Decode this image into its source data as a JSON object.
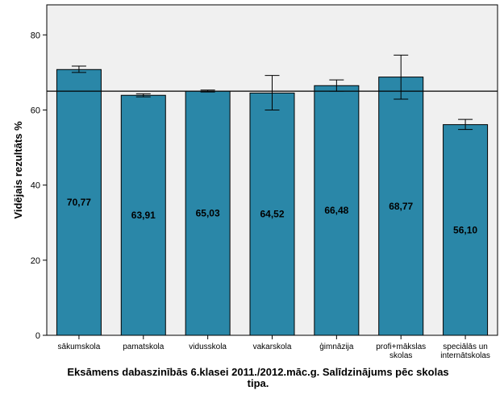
{
  "colors": {
    "bar": "#2a87a8",
    "plot_bg": "#f0f0f0",
    "reference_line": "#000000"
  },
  "chart_data": {
    "type": "bar",
    "categories": [
      [
        "sākumskola"
      ],
      [
        "pamatskola"
      ],
      [
        "vidusskola"
      ],
      [
        "vakarskola"
      ],
      [
        "ģimnāzija"
      ],
      [
        "profi+mākslas",
        "skolas"
      ],
      [
        "speciālās un",
        "internātskolas"
      ]
    ],
    "values": [
      70.77,
      63.91,
      65.03,
      64.52,
      66.48,
      68.77,
      56.1
    ],
    "value_labels": [
      "70,77",
      "63,91",
      "65,03",
      "64,52",
      "66,48",
      "68,77",
      "56,10"
    ],
    "error_bars": [
      [
        70.0,
        71.7
      ],
      [
        63.5,
        64.3
      ],
      [
        64.8,
        65.3
      ],
      [
        60.0,
        69.2
      ],
      [
        65.0,
        68.0
      ],
      [
        62.9,
        74.6
      ],
      [
        54.8,
        57.5
      ]
    ],
    "reference_line": 65.0,
    "ylabel": "Vidējais rezultāts %",
    "ylim": [
      0,
      88
    ],
    "yticks": [
      0,
      20,
      40,
      60,
      80
    ],
    "title_lines": [
      "Eksāmens dabaszinībās 6.klasei 2011./2012.māc.g. Salīdzinājums pēc skolas",
      "tipa."
    ]
  }
}
